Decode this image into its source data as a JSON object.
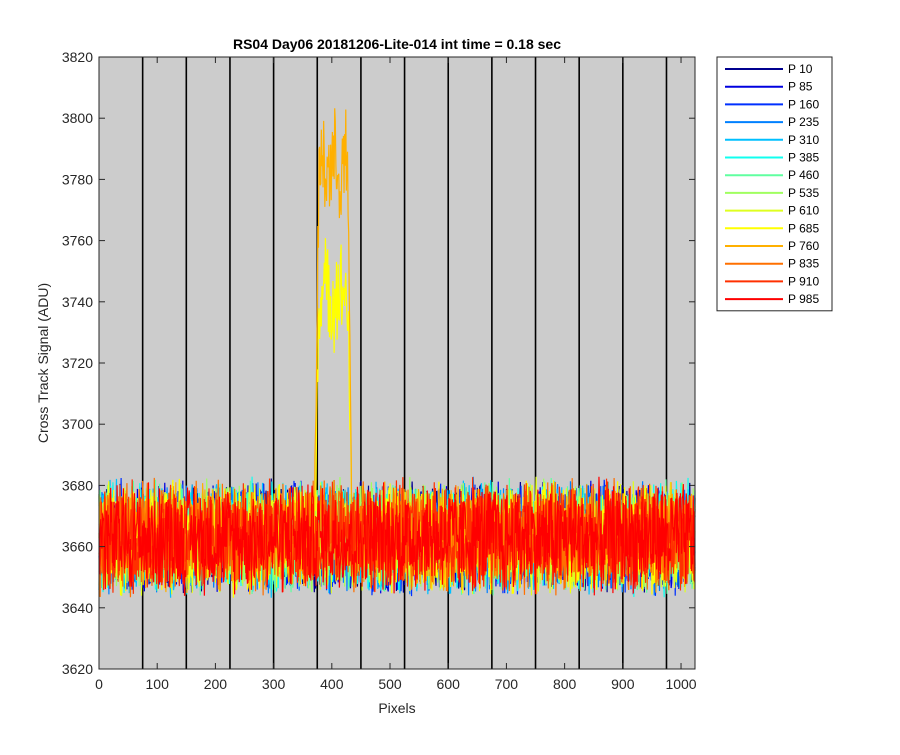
{
  "chart_data": {
    "type": "line",
    "title": "RS04 Day06 20181206-Lite-014 int time = 0.18 sec",
    "xlabel": "Pixels",
    "ylabel": "Cross Track Signal (ADU)",
    "xlim": [
      0,
      1024
    ],
    "ylim": [
      3620,
      3820
    ],
    "xticks": [
      0,
      100,
      200,
      300,
      400,
      500,
      600,
      700,
      800,
      900,
      1000
    ],
    "yticks": [
      3620,
      3640,
      3660,
      3680,
      3700,
      3720,
      3740,
      3760,
      3780,
      3800,
      3820
    ],
    "background": "#cccccc",
    "grid": false,
    "vertical_lines_x": [
      75,
      150,
      225,
      300,
      375,
      450,
      525,
      600,
      675,
      750,
      825,
      900,
      975
    ],
    "vertical_line_color": "#000000",
    "legend": "outside-top-right",
    "noise_mean": 3663,
    "noise_halfrange": 20,
    "series": [
      {
        "name": "P 10",
        "color": "#00008f",
        "peak": 0
      },
      {
        "name": "P 85",
        "color": "#0000df",
        "peak": 0
      },
      {
        "name": "P 160",
        "color": "#0030ff",
        "peak": 0
      },
      {
        "name": "P 235",
        "color": "#0080ff",
        "peak": 0
      },
      {
        "name": "P 310",
        "color": "#00c0ff",
        "peak": 0
      },
      {
        "name": "P 385",
        "color": "#10ffef",
        "peak": 0
      },
      {
        "name": "P 460",
        "color": "#60ffa0",
        "peak": 0
      },
      {
        "name": "P 535",
        "color": "#a0ff60",
        "peak": 0
      },
      {
        "name": "P 610",
        "color": "#dfff20",
        "peak": 0
      },
      {
        "name": "P 685",
        "color": "#ffff00",
        "peak": 3743
      },
      {
        "name": "P 760",
        "color": "#ffb000",
        "peak": 3785
      },
      {
        "name": "P 835",
        "color": "#ff7000",
        "peak": 3668
      },
      {
        "name": "P 910",
        "color": "#ff3000",
        "peak": 0
      },
      {
        "name": "P 985",
        "color": "#ff0000",
        "peak": 0
      }
    ],
    "peak_x_range": [
      370,
      435
    ]
  }
}
